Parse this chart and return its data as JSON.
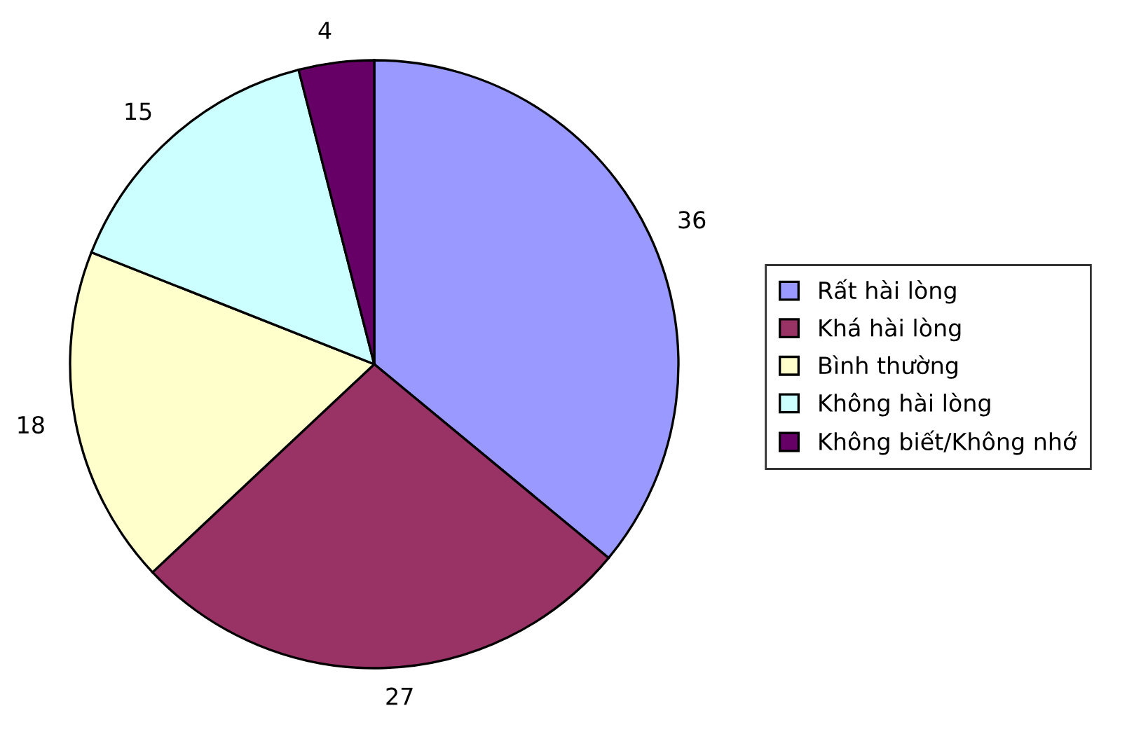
{
  "chart_data": {
    "type": "pie",
    "categories": [
      "Rất hài lòng",
      "Khá hài lòng",
      "Bình thường",
      "Không hài lòng",
      "Không biết/Không nhớ"
    ],
    "values": [
      36,
      27,
      18,
      15,
      4
    ],
    "colors": [
      "#9999ff",
      "#993366",
      "#ffffcc",
      "#ccffff",
      "#660066"
    ],
    "data_labels": true,
    "legend": "right"
  }
}
